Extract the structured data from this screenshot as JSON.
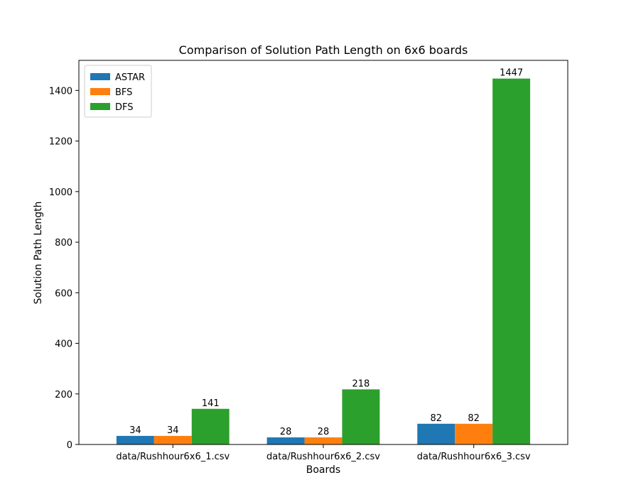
{
  "chart_data": {
    "type": "bar",
    "title": "Comparison of Solution Path Length on 6x6 boards",
    "xlabel": "Boards",
    "ylabel": "Solution Path Length",
    "categories": [
      "data/Rushhour6x6_1.csv",
      "data/Rushhour6x6_2.csv",
      "data/Rushhour6x6_3.csv"
    ],
    "series": [
      {
        "name": "ASTAR",
        "color": "#1f77b4",
        "values": [
          34,
          28,
          82
        ]
      },
      {
        "name": "BFS",
        "color": "#ff7f0e",
        "values": [
          34,
          28,
          82
        ]
      },
      {
        "name": "DFS",
        "color": "#2ca02c",
        "values": [
          141,
          218,
          1447
        ]
      }
    ],
    "yticks": [
      0,
      200,
      400,
      600,
      800,
      1000,
      1200,
      1400
    ],
    "ylim": [
      0,
      1519
    ],
    "legend": "top-left",
    "grid": false
  }
}
